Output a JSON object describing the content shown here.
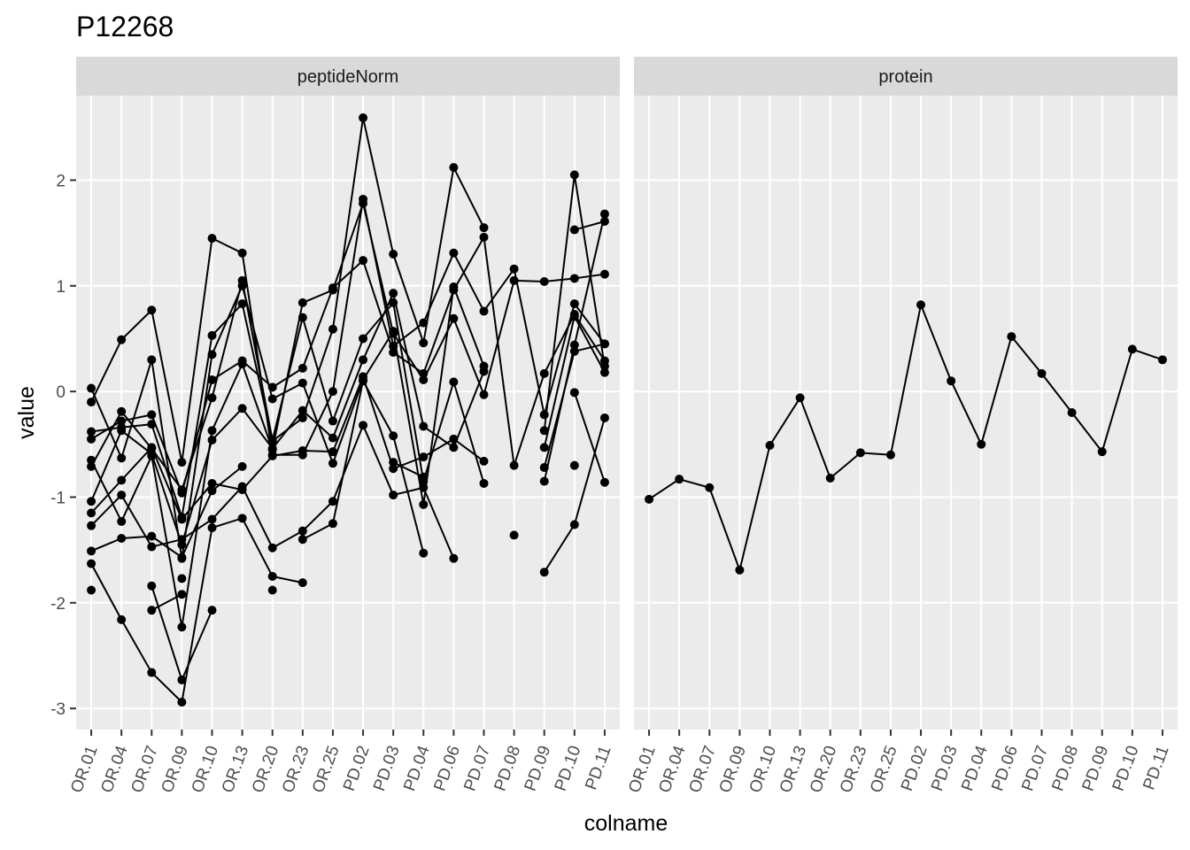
{
  "chart_data": {
    "type": "line",
    "title": "P12268",
    "xlabel": "colname",
    "ylabel": "value",
    "ylim": [
      -3.2,
      2.8
    ],
    "yticks": [
      -3,
      -2,
      -1,
      0,
      1,
      2
    ],
    "categories": [
      "OR.01",
      "OR.04",
      "OR.07",
      "OR.09",
      "OR.10",
      "OR.13",
      "OR.20",
      "OR.23",
      "OR.25",
      "PD.02",
      "PD.03",
      "PD.04",
      "PD.06",
      "PD.07",
      "PD.08",
      "PD.09",
      "PD.10",
      "PD.11"
    ],
    "grid": true,
    "legend": "none",
    "colors": {
      "panel_bg": "#ebebeb",
      "grid_major": "#ffffff",
      "strip_bg": "#d9d9d9",
      "line": "#000000",
      "point": "#000000"
    },
    "panels": [
      {
        "name": "peptideNorm",
        "series": [
          {
            "values": [
              0.03,
              -0.63,
              0.3,
              -1.58,
              0.35,
              1.0,
              -0.07,
              0.08,
              -0.68,
              0.11,
              0.57,
              -1.07,
              0.99,
              0.24,
              null,
              null,
              null,
              null
            ]
          },
          {
            "values": [
              -0.1,
              0.49,
              0.77,
              -0.67,
              1.45,
              1.31,
              -0.6,
              -0.6,
              0.0,
              1.82,
              0.43,
              0.65,
              1.31,
              0.76,
              1.16,
              -0.22,
              0.83,
              0.45
            ]
          },
          {
            "values": [
              -0.38,
              -0.34,
              -0.31,
              -1.19,
              0.53,
              0.83,
              -0.47,
              -0.25,
              0.59,
              2.59,
              1.3,
              0.46,
              2.12,
              1.55,
              null,
              null,
              null,
              null
            ]
          },
          {
            "values": [
              -0.45,
              -0.28,
              -0.22,
              -0.96,
              0.11,
              0.29,
              0.04,
              0.22,
              0.98,
              1.24,
              0.37,
              0.17,
              0.96,
              1.46,
              -0.7,
              0.17,
              0.73,
              0.29
            ]
          },
          {
            "values": [
              -0.65,
              -1.23,
              -0.61,
              -2.23,
              -0.37,
              0.26,
              -0.55,
              0.84,
              0.96,
              1.78,
              0.55,
              0.11,
              0.69,
              -0.03,
              1.05,
              1.04,
              1.07,
              1.11
            ]
          },
          {
            "values": [
              -0.71,
              -0.19,
              -0.54,
              -0.93,
              -0.06,
              1.05,
              -0.46,
              0.7,
              -0.28,
              0.5,
              0.84,
              -0.85,
              0.09,
              -0.87,
              null,
              -0.85,
              0.44,
              1.68
            ]
          },
          {
            "values": [
              -1.04,
              -0.37,
              -0.59,
              -1.45,
              -0.46,
              -0.16,
              -0.54,
              -0.18,
              -0.44,
              0.3,
              0.93,
              -0.33,
              -0.53,
              0.19,
              null,
              -0.53,
              0.71,
              0.18
            ]
          },
          {
            "values": [
              -1.15,
              -0.84,
              -0.53,
              -1.21,
              -0.87,
              -0.93,
              -0.61,
              -0.56,
              -0.57,
              0.14,
              -0.73,
              -0.62,
              -0.45,
              -0.66,
              null,
              -0.72,
              0.38,
              0.45
            ]
          },
          {
            "values": [
              -1.27,
              -0.98,
              -1.47,
              -1.4,
              -1.21,
              -0.9,
              -1.48,
              -1.32,
              -1.04,
              -0.32,
              -0.98,
              -0.91,
              -1.58,
              null,
              null,
              -0.37,
              2.05,
              0.24
            ]
          },
          {
            "values": [
              -1.51,
              -1.39,
              -1.37,
              -1.57,
              -0.94,
              -0.71,
              null,
              -1.4,
              -1.25,
              0.1,
              -0.42,
              -1.53,
              null,
              null,
              null,
              -1.71,
              -1.26,
              -0.25
            ]
          },
          {
            "values": [
              -1.63,
              -2.16,
              -2.66,
              -2.94,
              -1.29,
              -1.2,
              -1.75,
              -1.81,
              null,
              null,
              -0.67,
              -0.81,
              null,
              null,
              -1.36,
              null,
              1.53,
              1.61
            ]
          },
          {
            "values": [
              -1.88,
              null,
              -1.84,
              -2.73,
              -2.07,
              null,
              -1.88,
              null,
              null,
              null,
              null,
              null,
              null,
              null,
              null,
              null,
              -0.01,
              -0.86
            ]
          },
          {
            "values": [
              null,
              null,
              -2.07,
              -1.92,
              null,
              null,
              null,
              null,
              null,
              null,
              null,
              null,
              null,
              null,
              null,
              null,
              -0.7,
              null
            ]
          },
          {
            "values": [
              null,
              null,
              null,
              -1.77,
              null,
              null,
              null,
              null,
              null,
              null,
              null,
              null,
              null,
              null,
              null,
              null,
              null,
              null
            ]
          }
        ]
      },
      {
        "name": "protein",
        "series": [
          {
            "values": [
              -1.02,
              -0.83,
              -0.91,
              -1.69,
              -0.51,
              -0.06,
              -0.82,
              -0.58,
              -0.6,
              0.82,
              0.1,
              -0.5,
              0.52,
              0.17,
              -0.2,
              -0.57,
              0.4,
              0.3
            ]
          }
        ]
      }
    ]
  }
}
